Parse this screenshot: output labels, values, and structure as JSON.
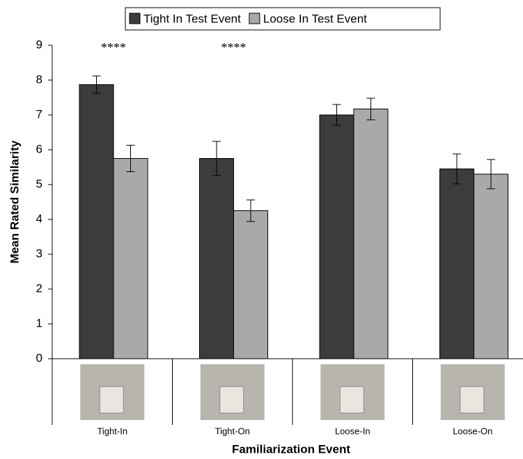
{
  "chart_data": {
    "type": "bar",
    "x_label": "Familiarization Event",
    "y_label": "Mean Rated Similarity",
    "categories": [
      "Tight-In",
      "Tight-On",
      "Loose-In",
      "Loose-On"
    ],
    "series": [
      {
        "name": "Tight In Test Event",
        "color": "#3c3c3c",
        "values": [
          7.87,
          5.75,
          7.0,
          5.45
        ],
        "errors": [
          0.25,
          0.49,
          0.3,
          0.43
        ]
      },
      {
        "name": "Loose In Test Event",
        "color": "#a9a9a9",
        "values": [
          5.75,
          4.25,
          7.17,
          5.3
        ],
        "errors": [
          0.38,
          0.31,
          0.31,
          0.42
        ]
      }
    ],
    "annotations": [
      {
        "text": "****",
        "category": "Tight-In"
      },
      {
        "text": "****",
        "category": "Tight-On"
      }
    ],
    "ylim": [
      0,
      9
    ],
    "yticks": [
      0,
      1,
      2,
      3,
      4,
      5,
      6,
      7,
      8,
      9
    ],
    "grid": false
  }
}
